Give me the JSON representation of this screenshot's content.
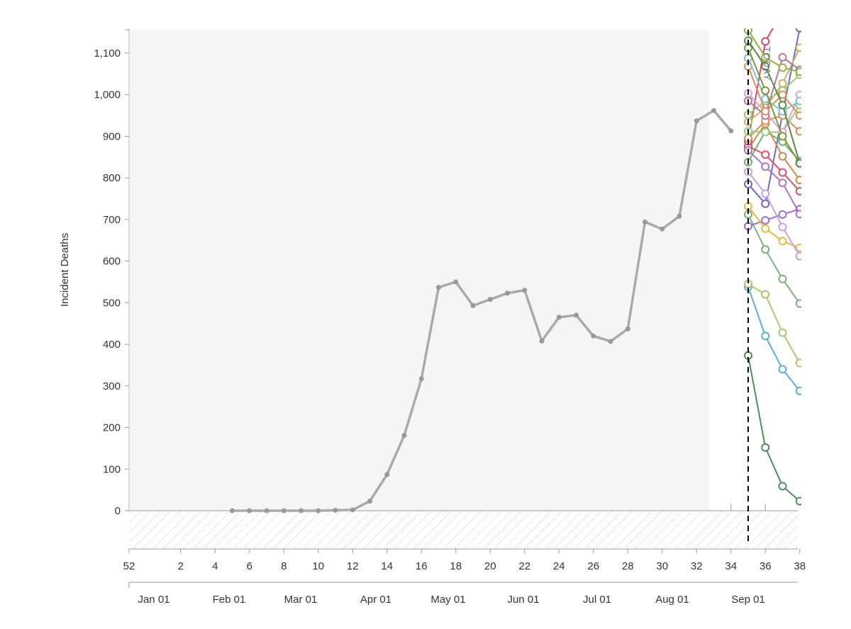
{
  "chart_data": {
    "type": "line",
    "ylabel": "Incident Deaths",
    "ylim": [
      0,
      1160
    ],
    "y_ticks": [
      0,
      100,
      200,
      300,
      400,
      500,
      600,
      700,
      800,
      900,
      1000,
      1100
    ],
    "y_tick_labels": [
      "0",
      "100",
      "200",
      "300",
      "400",
      "500",
      "600",
      "700",
      "800",
      "900",
      "1,000",
      "1,100"
    ],
    "x_week_ticks": [
      52,
      2,
      4,
      6,
      8,
      10,
      12,
      14,
      16,
      18,
      20,
      22,
      24,
      26,
      28,
      30,
      32,
      34,
      36,
      38
    ],
    "x_month_ticks": [
      "Jan 01",
      "Feb 01",
      "Mar 01",
      "Apr 01",
      "May 01",
      "Jun 01",
      "Jul 01",
      "Aug 01",
      "Sep 01"
    ],
    "today_label": "TODAY",
    "today_week": 35,
    "truth": {
      "weeks": [
        5,
        6,
        7,
        8,
        9,
        10,
        11,
        12,
        13,
        14,
        15,
        16,
        17,
        18,
        19,
        20,
        21,
        22,
        23,
        24,
        25,
        26,
        27,
        28,
        29,
        30,
        31,
        32,
        33,
        34
      ],
      "values": [
        0,
        0,
        0,
        0,
        0,
        0,
        1,
        2,
        23,
        87,
        181,
        317,
        537,
        550,
        493,
        508,
        523,
        530,
        408,
        465,
        470,
        420,
        407,
        437,
        694,
        677,
        708,
        937,
        962,
        913
      ],
      "color": "#aaaaaa"
    },
    "forecast_weeks": [
      35,
      36,
      37,
      38
    ],
    "forecasts": [
      {
        "color": "#4e8f5a",
        "values": [
          373,
          152,
          59,
          23
        ]
      },
      {
        "color": "#5aaee0",
        "values": [
          538,
          420,
          340,
          288
        ]
      },
      {
        "color": "#a6cc6a",
        "values": [
          545,
          520,
          428,
          355
        ]
      },
      {
        "color": "#7fb07a",
        "values": [
          712,
          628,
          557,
          498
        ]
      },
      {
        "color": "#9b6fd8",
        "values": [
          684,
          698,
          712,
          725
        ]
      },
      {
        "color": "#e7b93c",
        "values": [
          732,
          678,
          648,
          632
        ]
      },
      {
        "color": "#6f68c9",
        "values": [
          785,
          738,
          955,
          1160
        ]
      },
      {
        "color": "#c9a0e8",
        "values": [
          815,
          762,
          682,
          612
        ]
      },
      {
        "color": "#69b56c",
        "values": [
          838,
          912,
          887,
          840
        ]
      },
      {
        "color": "#d08a4a",
        "values": [
          870,
          930,
          852,
          795
        ]
      },
      {
        "color": "#e05065",
        "values": [
          876,
          856,
          813,
          768
        ]
      },
      {
        "color": "#b073c6",
        "values": [
          866,
          827,
          788,
          713
        ]
      },
      {
        "color": "#cf4d72",
        "values": [
          888,
          1128,
          1200,
          1200
        ]
      },
      {
        "color": "#df8a5e",
        "values": [
          895,
          937,
          950,
          912
        ]
      },
      {
        "color": "#8fd17e",
        "values": [
          912,
          910,
          910,
          975
        ]
      },
      {
        "color": "#c8b068",
        "values": [
          935,
          968,
          1027,
          1113
        ]
      },
      {
        "color": "#9acb6a",
        "values": [
          952,
          985,
          1010,
          1048
        ]
      },
      {
        "color": "#e7a0c5",
        "values": [
          1003,
          958,
          910,
          1000
        ]
      },
      {
        "color": "#b47a9a",
        "values": [
          985,
          950,
          1090,
          1060
        ]
      },
      {
        "color": "#e38a5b",
        "values": [
          1068,
          960,
          1000,
          950
        ]
      },
      {
        "color": "#78c5d2",
        "values": [
          1088,
          990,
          960,
          985
        ]
      },
      {
        "color": "#7a9a3a",
        "values": [
          1112,
          1010,
          900,
          835
        ]
      },
      {
        "color": "#5a8a4a",
        "values": [
          1130,
          1068,
          975,
          835
        ]
      },
      {
        "color": "#8fb042",
        "values": [
          1155,
          1090,
          1065,
          1055
        ]
      }
    ]
  }
}
